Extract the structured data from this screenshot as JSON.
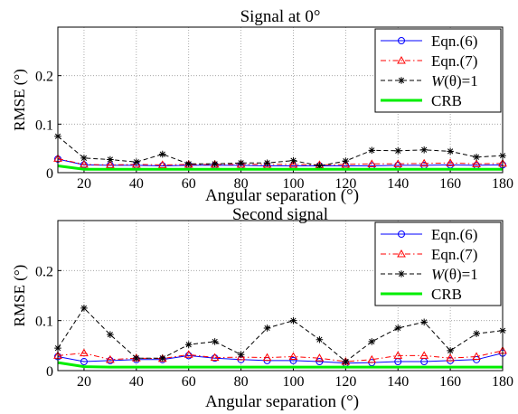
{
  "chart_data": [
    {
      "type": "line",
      "title": "Signal at 0°",
      "xlabel": "Angular separation (°)",
      "ylabel": "RMSE (°)",
      "xlim": [
        10,
        180
      ],
      "ylim": [
        0,
        0.3
      ],
      "xticks": [
        "20",
        "40",
        "60",
        "80",
        "100",
        "120",
        "140",
        "160",
        "180"
      ],
      "yticks": [
        "0",
        "0.1",
        "0.2"
      ],
      "grid": true,
      "legend_position": "top-right",
      "x": [
        10,
        20,
        30,
        40,
        50,
        60,
        70,
        80,
        90,
        100,
        110,
        120,
        130,
        140,
        150,
        160,
        170,
        180
      ],
      "series": [
        {
          "name": "Eqn.(6)",
          "color": "#0000ff",
          "marker": "circle",
          "dash": "solid",
          "values": [
            0.028,
            0.016,
            0.015,
            0.015,
            0.014,
            0.015,
            0.015,
            0.015,
            0.014,
            0.014,
            0.014,
            0.014,
            0.014,
            0.015,
            0.015,
            0.016,
            0.015,
            0.016
          ]
        },
        {
          "name": "Eqn.(7)",
          "color": "#ff0000",
          "marker": "triangle",
          "dash": "dashdot",
          "values": [
            0.029,
            0.017,
            0.016,
            0.017,
            0.016,
            0.017,
            0.017,
            0.017,
            0.017,
            0.017,
            0.016,
            0.017,
            0.018,
            0.018,
            0.019,
            0.02,
            0.018,
            0.019
          ]
        },
        {
          "name": "W(θ)=1",
          "color": "#000000",
          "marker": "star",
          "dash": "dashed",
          "values": [
            0.075,
            0.03,
            0.027,
            0.022,
            0.038,
            0.018,
            0.018,
            0.02,
            0.02,
            0.025,
            0.014,
            0.024,
            0.046,
            0.045,
            0.047,
            0.044,
            0.032,
            0.035
          ]
        },
        {
          "name": "CRB",
          "color": "#00ee00",
          "marker": "none",
          "dash": "solid",
          "width": 3,
          "values": [
            0.014,
            0.007,
            0.007,
            0.007,
            0.007,
            0.007,
            0.007,
            0.007,
            0.007,
            0.007,
            0.007,
            0.007,
            0.007,
            0.007,
            0.007,
            0.007,
            0.007,
            0.007
          ]
        }
      ]
    },
    {
      "type": "line",
      "title": "Second signal",
      "xlabel": "Angular separation (°)",
      "ylabel": "RMSE (°)",
      "xlim": [
        10,
        180
      ],
      "ylim": [
        0,
        0.3
      ],
      "xticks": [
        "20",
        "40",
        "60",
        "80",
        "100",
        "120",
        "140",
        "160",
        "180"
      ],
      "yticks": [
        "0",
        "0.1",
        "0.2"
      ],
      "grid": true,
      "legend_position": "top-right",
      "x": [
        10,
        20,
        30,
        40,
        50,
        60,
        70,
        80,
        90,
        100,
        110,
        120,
        130,
        140,
        150,
        160,
        170,
        180
      ],
      "series": [
        {
          "name": "Eqn.(6)",
          "color": "#0000ff",
          "marker": "circle",
          "dash": "solid",
          "values": [
            0.028,
            0.018,
            0.02,
            0.022,
            0.022,
            0.03,
            0.025,
            0.022,
            0.02,
            0.02,
            0.018,
            0.015,
            0.016,
            0.018,
            0.018,
            0.02,
            0.022,
            0.035
          ]
        },
        {
          "name": "Eqn.(7)",
          "color": "#ff0000",
          "marker": "triangle",
          "dash": "dashdot",
          "values": [
            0.03,
            0.035,
            0.022,
            0.025,
            0.024,
            0.032,
            0.026,
            0.027,
            0.026,
            0.028,
            0.025,
            0.018,
            0.022,
            0.03,
            0.03,
            0.025,
            0.028,
            0.04
          ]
        },
        {
          "name": "W(θ)=1",
          "color": "#000000",
          "marker": "star",
          "dash": "dashed",
          "values": [
            0.045,
            0.125,
            0.072,
            0.025,
            0.025,
            0.052,
            0.058,
            0.032,
            0.085,
            0.1,
            0.062,
            0.018,
            0.058,
            0.085,
            0.097,
            0.04,
            0.074,
            0.08
          ]
        },
        {
          "name": "CRB",
          "color": "#00ee00",
          "marker": "none",
          "dash": "solid",
          "width": 3,
          "values": [
            0.016,
            0.008,
            0.007,
            0.007,
            0.007,
            0.007,
            0.007,
            0.007,
            0.007,
            0.007,
            0.007,
            0.007,
            0.007,
            0.007,
            0.007,
            0.007,
            0.007,
            0.007
          ]
        }
      ]
    }
  ]
}
